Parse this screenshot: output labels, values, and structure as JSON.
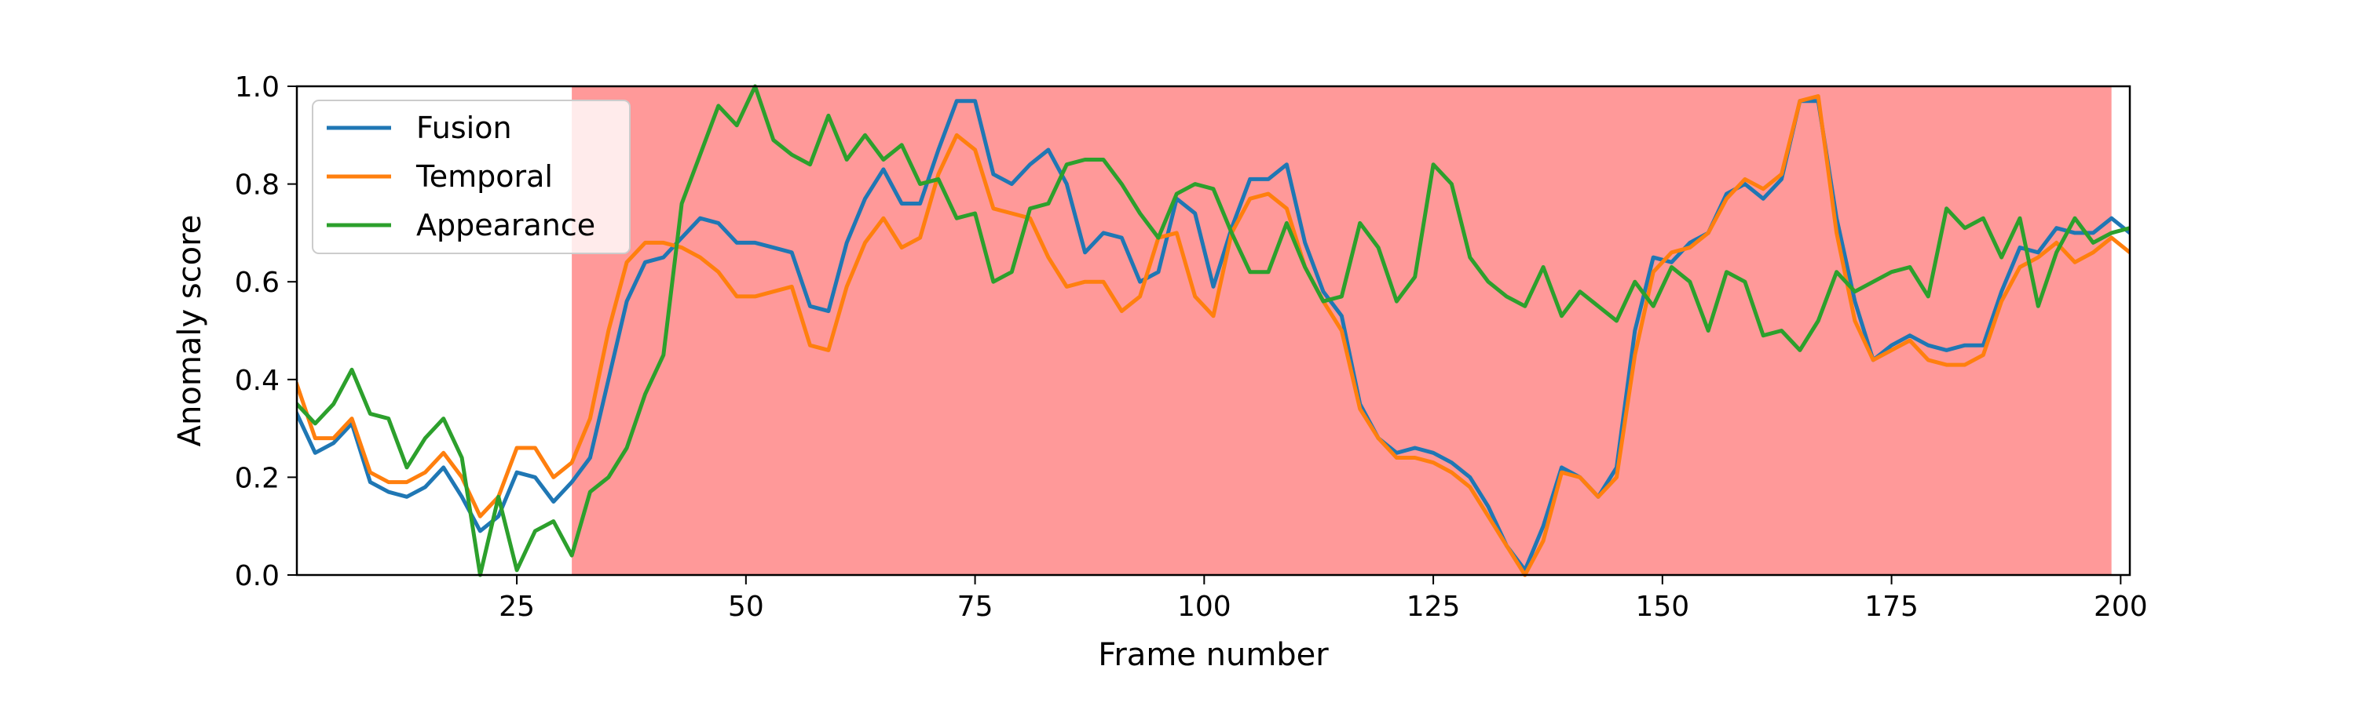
{
  "chart_data": {
    "type": "line",
    "title": "",
    "xlabel": "Frame number",
    "ylabel": "Anomaly score",
    "xlim": [
      1,
      201
    ],
    "ylim": [
      0,
      1
    ],
    "xticks": [
      25,
      50,
      75,
      100,
      125,
      150,
      175,
      200
    ],
    "yticks": [
      0.0,
      0.2,
      0.4,
      0.6,
      0.8,
      1.0
    ],
    "ytick_labels": [
      "0.0",
      "0.2",
      "0.4",
      "0.6",
      "0.8",
      "1.0"
    ],
    "grid": false,
    "legend": "upper-left",
    "anomaly_region": {
      "x_start": 31,
      "x_end": 199,
      "color": "#ff9999"
    },
    "series": [
      {
        "name": "Fusion",
        "color": "#1f77b4",
        "x": [
          1,
          3,
          5,
          7,
          9,
          11,
          13,
          15,
          17,
          19,
          21,
          23,
          25,
          27,
          29,
          31,
          33,
          35,
          37,
          39,
          41,
          43,
          45,
          47,
          49,
          51,
          53,
          55,
          57,
          59,
          61,
          63,
          65,
          67,
          69,
          71,
          73,
          75,
          77,
          79,
          81,
          83,
          85,
          87,
          89,
          91,
          93,
          95,
          97,
          99,
          101,
          103,
          105,
          107,
          109,
          111,
          113,
          115,
          117,
          119,
          121,
          123,
          125,
          127,
          129,
          131,
          133,
          135,
          137,
          139,
          141,
          143,
          145,
          147,
          149,
          151,
          153,
          155,
          157,
          159,
          161,
          163,
          165,
          167,
          169,
          171,
          173,
          175,
          177,
          179,
          181,
          183,
          185,
          187,
          189,
          191,
          193,
          195,
          197,
          199,
          201
        ],
        "values": [
          0.33,
          0.25,
          0.27,
          0.31,
          0.19,
          0.17,
          0.16,
          0.18,
          0.22,
          0.16,
          0.09,
          0.12,
          0.21,
          0.2,
          0.15,
          0.19,
          0.24,
          0.4,
          0.56,
          0.64,
          0.65,
          0.69,
          0.73,
          0.72,
          0.68,
          0.68,
          0.67,
          0.66,
          0.55,
          0.54,
          0.68,
          0.77,
          0.83,
          0.76,
          0.76,
          0.87,
          0.97,
          0.97,
          0.82,
          0.8,
          0.84,
          0.87,
          0.8,
          0.66,
          0.7,
          0.69,
          0.6,
          0.62,
          0.77,
          0.74,
          0.59,
          0.71,
          0.81,
          0.81,
          0.84,
          0.68,
          0.58,
          0.53,
          0.35,
          0.28,
          0.25,
          0.26,
          0.25,
          0.23,
          0.2,
          0.14,
          0.06,
          0.01,
          0.1,
          0.22,
          0.2,
          0.16,
          0.22,
          0.5,
          0.65,
          0.64,
          0.68,
          0.7,
          0.78,
          0.8,
          0.77,
          0.81,
          0.97,
          0.97,
          0.73,
          0.56,
          0.44,
          0.47,
          0.49,
          0.47,
          0.46,
          0.47,
          0.47,
          0.58,
          0.67,
          0.66,
          0.71,
          0.7,
          0.7,
          0.73,
          0.7
        ]
      },
      {
        "name": "Temporal",
        "color": "#ff7f0e",
        "x": [
          1,
          3,
          5,
          7,
          9,
          11,
          13,
          15,
          17,
          19,
          21,
          23,
          25,
          27,
          29,
          31,
          33,
          35,
          37,
          39,
          41,
          43,
          45,
          47,
          49,
          51,
          53,
          55,
          57,
          59,
          61,
          63,
          65,
          67,
          69,
          71,
          73,
          75,
          77,
          79,
          81,
          83,
          85,
          87,
          89,
          91,
          93,
          95,
          97,
          99,
          101,
          103,
          105,
          107,
          109,
          111,
          113,
          115,
          117,
          119,
          121,
          123,
          125,
          127,
          129,
          131,
          133,
          135,
          137,
          139,
          141,
          143,
          145,
          147,
          149,
          151,
          153,
          155,
          157,
          159,
          161,
          163,
          165,
          167,
          169,
          171,
          173,
          175,
          177,
          179,
          181,
          183,
          185,
          187,
          189,
          191,
          193,
          195,
          197,
          199,
          201
        ],
        "values": [
          0.39,
          0.28,
          0.28,
          0.32,
          0.21,
          0.19,
          0.19,
          0.21,
          0.25,
          0.2,
          0.12,
          0.16,
          0.26,
          0.26,
          0.2,
          0.23,
          0.32,
          0.5,
          0.64,
          0.68,
          0.68,
          0.67,
          0.65,
          0.62,
          0.57,
          0.57,
          0.58,
          0.59,
          0.47,
          0.46,
          0.59,
          0.68,
          0.73,
          0.67,
          0.69,
          0.82,
          0.9,
          0.87,
          0.75,
          0.74,
          0.73,
          0.65,
          0.59,
          0.6,
          0.6,
          0.54,
          0.57,
          0.69,
          0.7,
          0.57,
          0.53,
          0.7,
          0.77,
          0.78,
          0.75,
          0.63,
          0.56,
          0.5,
          0.34,
          0.28,
          0.24,
          0.24,
          0.23,
          0.21,
          0.18,
          0.12,
          0.06,
          0.0,
          0.07,
          0.21,
          0.2,
          0.16,
          0.2,
          0.45,
          0.62,
          0.66,
          0.67,
          0.7,
          0.77,
          0.81,
          0.79,
          0.82,
          0.97,
          0.98,
          0.7,
          0.52,
          0.44,
          0.46,
          0.48,
          0.44,
          0.43,
          0.43,
          0.45,
          0.56,
          0.63,
          0.65,
          0.68,
          0.64,
          0.66,
          0.69,
          0.66
        ]
      },
      {
        "name": "Appearance",
        "color": "#2ca02c",
        "x": [
          1,
          3,
          5,
          7,
          9,
          11,
          13,
          15,
          17,
          19,
          21,
          23,
          25,
          27,
          29,
          31,
          33,
          35,
          37,
          39,
          41,
          43,
          45,
          47,
          49,
          51,
          53,
          55,
          57,
          59,
          61,
          63,
          65,
          67,
          69,
          71,
          73,
          75,
          77,
          79,
          81,
          83,
          85,
          87,
          89,
          91,
          93,
          95,
          97,
          99,
          101,
          103,
          105,
          107,
          109,
          111,
          113,
          115,
          117,
          119,
          121,
          123,
          125,
          127,
          129,
          131,
          133,
          135,
          137,
          139,
          141,
          143,
          145,
          147,
          149,
          151,
          153,
          155,
          157,
          159,
          161,
          163,
          165,
          167,
          169,
          171,
          173,
          175,
          177,
          179,
          181,
          183,
          185,
          187,
          189,
          191,
          193,
          195,
          197,
          199,
          201
        ],
        "values": [
          0.35,
          0.31,
          0.35,
          0.42,
          0.33,
          0.32,
          0.22,
          0.28,
          0.32,
          0.24,
          0.0,
          0.16,
          0.01,
          0.09,
          0.11,
          0.04,
          0.17,
          0.2,
          0.26,
          0.37,
          0.45,
          0.76,
          0.86,
          0.96,
          0.92,
          1.0,
          0.89,
          0.86,
          0.84,
          0.94,
          0.85,
          0.9,
          0.85,
          0.88,
          0.8,
          0.81,
          0.73,
          0.74,
          0.6,
          0.62,
          0.75,
          0.76,
          0.84,
          0.85,
          0.85,
          0.8,
          0.74,
          0.69,
          0.78,
          0.8,
          0.79,
          0.7,
          0.62,
          0.62,
          0.72,
          0.63,
          0.56,
          0.57,
          0.72,
          0.67,
          0.56,
          0.61,
          0.84,
          0.8,
          0.65,
          0.6,
          0.57,
          0.55,
          0.63,
          0.53,
          0.58,
          0.55,
          0.52,
          0.6,
          0.55,
          0.63,
          0.6,
          0.5,
          0.62,
          0.6,
          0.49,
          0.5,
          0.46,
          0.52,
          0.62,
          0.58,
          0.6,
          0.62,
          0.63,
          0.57,
          0.75,
          0.71,
          0.73,
          0.65,
          0.73,
          0.55,
          0.66,
          0.73,
          0.68,
          0.7,
          0.71
        ]
      }
    ]
  }
}
